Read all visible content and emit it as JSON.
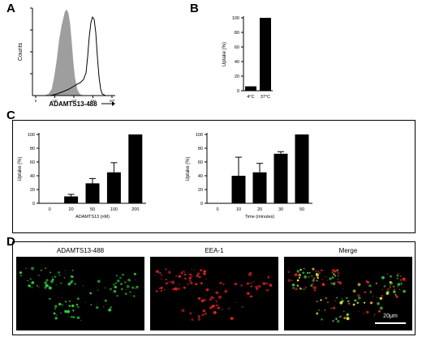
{
  "panels": {
    "a": {
      "letter": "A"
    },
    "b": {
      "letter": "B"
    },
    "c": {
      "letter": "C"
    },
    "d": {
      "letter": "D"
    }
  },
  "chart_data": [
    {
      "id": "A",
      "type": "histogram",
      "xlabel": "ADAMTS13-488",
      "ylabel": "Counts",
      "xticks": [
        "0",
        "10²",
        "10³",
        "10⁴",
        "10⁵"
      ],
      "series": [
        {
          "fill": "#9e9e9e"
        },
        {
          "fill": "none"
        }
      ]
    },
    {
      "id": "B",
      "type": "bar",
      "categories": [
        "4°C",
        "37°C"
      ],
      "values": [
        6,
        100
      ],
      "ylabel": "Uptake (%)",
      "ylim": [
        0,
        100
      ],
      "yticks": [
        0,
        20,
        40,
        60,
        80,
        100
      ]
    },
    {
      "id": "C-left",
      "type": "bar",
      "categories": [
        "0",
        "20",
        "50",
        "100",
        "200"
      ],
      "values": [
        0,
        10,
        29,
        45,
        100
      ],
      "errors": [
        0,
        3,
        7,
        14,
        0
      ],
      "ylabel": "Uptake (%)",
      "xlabel": "ADAMTS13 (nM)",
      "ylim": [
        0,
        100
      ],
      "yticks": [
        0,
        20,
        40,
        60,
        80,
        100
      ]
    },
    {
      "id": "C-right",
      "type": "bar",
      "categories": [
        "0",
        "10",
        "20",
        "30",
        "50"
      ],
      "values": [
        0,
        40,
        45,
        72,
        100
      ],
      "errors": [
        0,
        27,
        13,
        3,
        0
      ],
      "ylabel": "Uptake (%)",
      "xlabel": "Time (minutes)",
      "ylim": [
        0,
        100
      ],
      "yticks": [
        0,
        20,
        40,
        60,
        80,
        100
      ]
    }
  ],
  "micrographs": {
    "labels": [
      "ADAMTS13-488",
      "EEA-1",
      "Merge"
    ],
    "scalebar": "20μm"
  },
  "colors": {
    "green": "#29e03a",
    "red": "#ff1e1e",
    "yellow": "#f2ee2a",
    "gray_fill": "#9e9e9e"
  }
}
